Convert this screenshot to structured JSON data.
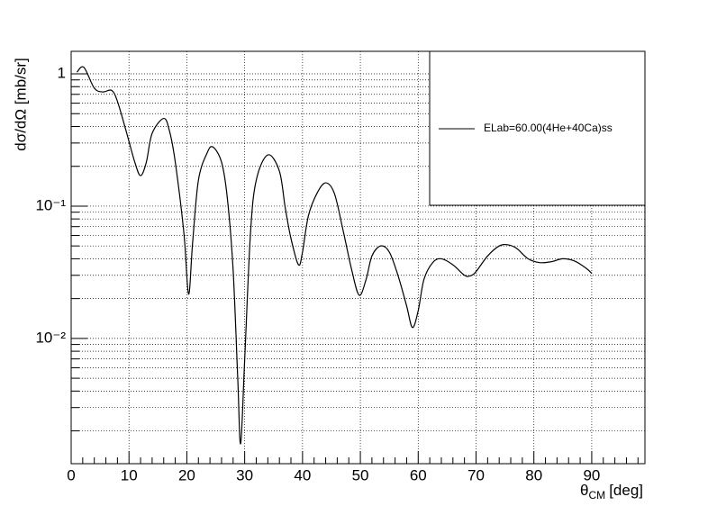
{
  "chart_data": {
    "type": "line",
    "y_label": "dσ/dΩ [mb/sr]",
    "x_label_symbol": "θ",
    "x_label_sub": "CM",
    "x_label_unit": "[deg]",
    "log_y": true,
    "grid": true,
    "legend": "top-right",
    "xlim": [
      0,
      99.2
    ],
    "ylim": [
      0.00113,
      1.48
    ],
    "xticks": [
      0,
      10,
      20,
      30,
      40,
      50,
      60,
      70,
      80,
      90
    ],
    "xminorticks": [
      2,
      4,
      6,
      8,
      12,
      14,
      16,
      18,
      22,
      24,
      26,
      28,
      32,
      34,
      36,
      38,
      42,
      44,
      46,
      48,
      52,
      54,
      56,
      58,
      62,
      64,
      66,
      68,
      72,
      74,
      76,
      78,
      82,
      84,
      86,
      88,
      92,
      94,
      96,
      98
    ],
    "yticks": [
      {
        "value": 0.01,
        "label": "10⁻²"
      },
      {
        "value": 0.1,
        "label": "10⁻¹"
      },
      1
    ],
    "yminorticks": [
      0.002,
      0.003,
      0.004,
      0.005,
      0.006,
      0.007,
      0.008,
      0.009,
      0.02,
      0.03,
      0.04,
      0.05,
      0.06,
      0.07,
      0.08,
      0.09,
      0.2,
      0.3,
      0.4,
      0.5,
      0.6,
      0.7,
      0.8,
      0.9
    ],
    "series": [
      {
        "name": "ELab=60.00(4He+40Ca)ss",
        "color": "#000000",
        "x": [
          1,
          2.2,
          4,
          5.5,
          7,
          8,
          9.5,
          11,
          12,
          13,
          14,
          16,
          17,
          18,
          19.5,
          20.3,
          21,
          22,
          23.5,
          24.5,
          26,
          27,
          28,
          28.8,
          29.3,
          30,
          31,
          32,
          34,
          36,
          37,
          38,
          39.3,
          40,
          41,
          42.5,
          44,
          45.5,
          47,
          48.5,
          49.8,
          51,
          52,
          53.5,
          55,
          56.5,
          58,
          59,
          60,
          61,
          62.5,
          64,
          66,
          68,
          69,
          70,
          72,
          74,
          75.5,
          77,
          79,
          81,
          83,
          85,
          87,
          89,
          90
        ],
        "values": [
          1.03,
          1.12,
          0.78,
          0.73,
          0.75,
          0.62,
          0.37,
          0.215,
          0.17,
          0.215,
          0.355,
          0.46,
          0.37,
          0.215,
          0.062,
          0.0216,
          0.053,
          0.157,
          0.252,
          0.28,
          0.215,
          0.115,
          0.033,
          0.005,
          0.0016,
          0.0069,
          0.062,
          0.157,
          0.244,
          0.184,
          0.098,
          0.057,
          0.036,
          0.045,
          0.084,
          0.125,
          0.15,
          0.125,
          0.066,
          0.033,
          0.0212,
          0.028,
          0.042,
          0.05,
          0.045,
          0.03,
          0.0176,
          0.0121,
          0.0162,
          0.028,
          0.0374,
          0.04,
          0.036,
          0.03,
          0.0297,
          0.032,
          0.042,
          0.05,
          0.051,
          0.048,
          0.04,
          0.0374,
          0.038,
          0.04,
          0.0385,
          0.034,
          0.031
        ]
      }
    ]
  }
}
